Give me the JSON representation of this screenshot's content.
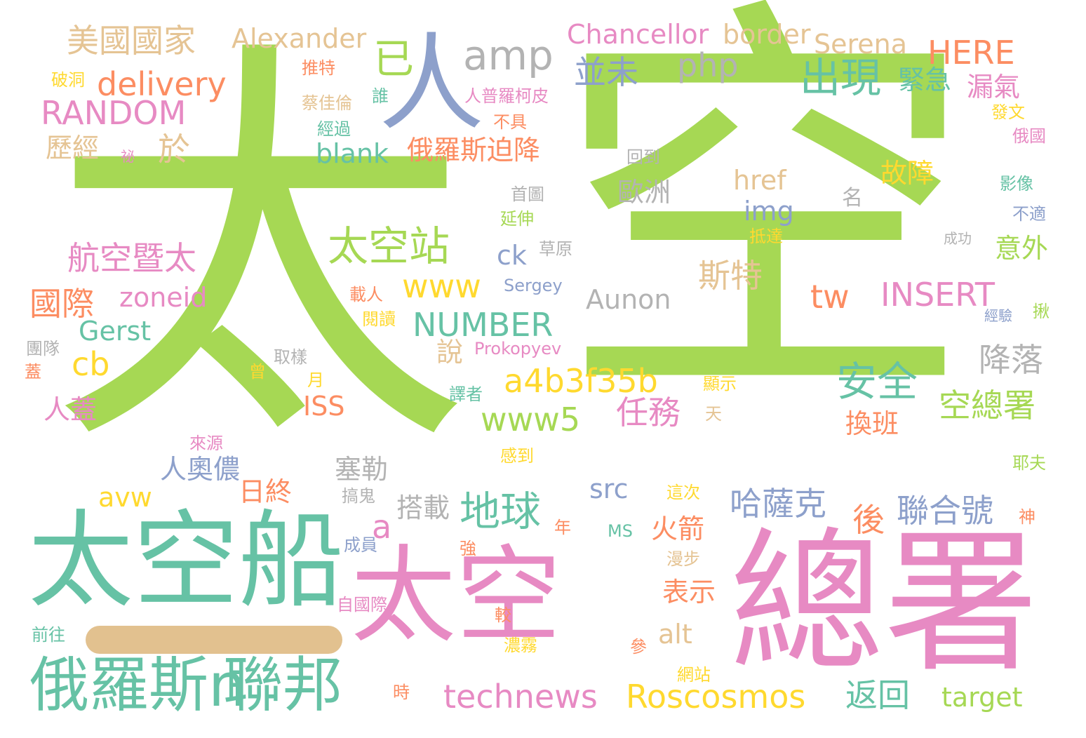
{
  "colors": {
    "green": "#a6d854",
    "teal": "#66c2a5",
    "pink": "#e78ac3",
    "blue": "#8da0cb",
    "orange": "#fc8d62",
    "yellow": "#ffd92f",
    "tan": "#e5c494",
    "gray": "#b3b3b3"
  },
  "words": {
    "tai": "太",
    "kong": "空",
    "taikongchuan": "太空船",
    "taikong_pink": "太空",
    "zongshu": "總署",
    "eluosi_n": "俄羅斯n",
    "lianbang": "聯邦",
    "ren": "人",
    "yi": "已",
    "amp": "amp",
    "php": "php",
    "chuxian": "出現",
    "taikongzhan": "太空站",
    "anquan": "安全",
    "diqiu": "地球",
    "meiguoguojia": "美國國家",
    "alexander": "Alexander",
    "chancellor": "Chancellor",
    "border": "border",
    "serena": "Serena",
    "here": "HERE",
    "delivery": "delivery",
    "random": "RANDOM",
    "bingwei": "並未",
    "jinji": "緊急",
    "louqi": "漏氣",
    "yu": "於",
    "lijing": "歷經",
    "blank": "blank",
    "eluosi_pojiang": "俄羅斯迫降",
    "guzhang": "故障",
    "href": "href",
    "ming": "名",
    "img": "img",
    "hangkong": "航空暨太",
    "ck": "ck",
    "sterte": "斯特",
    "yiwai": "意外",
    "guoji": "國際",
    "zoneid": "zoneid",
    "www": "www",
    "aunon": "Aunon",
    "insert": "INSERT",
    "tw": "tw",
    "number": "NUMBER",
    "gerst": "Gerst",
    "cb": "cb",
    "shuo": "說",
    "jiangluo": "降落",
    "a4b3": "a4b3f35b",
    "renzheng": "人蓋",
    "kongzongshu": "空總署",
    "iss": "ISS",
    "www5": "www5",
    "renwu": "任務",
    "huanban": "換班",
    "renaoru": "人奧儂",
    "saile": "塞勒",
    "rizhong": "日終",
    "avw": "avw",
    "a": "a",
    "src": "src",
    "dazai": "搭載",
    "huojian": "火箭",
    "hasake": "哈薩克",
    "hou": "後",
    "lianhehao": "聯合號",
    "biaoshi": "表示",
    "alt": "alt",
    "technews": "technews",
    "roscosmos": "Roscosmos",
    "fanhui": "返回",
    "target": "target",
    "ms": "MS",
    "prokopyev": "Prokopyev",
    "sergey": "Sergey",
    "tuite": "推特",
    "podong": "破洞",
    "caijialun": "蔡佳倫",
    "shui": "誰",
    "renpuluo": "人普羅柯皮",
    "jingguo": "經過",
    "bu_ju": "不具",
    "mi": "祕",
    "huidao": "回到",
    "fawen": "發文",
    "eguo": "俄國",
    "ouzhou": "歐洲",
    "shoutu": "首圖",
    "yanshen": "延伸",
    "yingxiang": "影像",
    "bushi": "不適",
    "dida": "抵達",
    "caoyuan": "草原",
    "chenggong": "成功",
    "zairen": "載人",
    "yuedu": "閱讀",
    "jingyan": "經驗",
    "jiu": "揪",
    "tuandui": "團隊",
    "quyang": "取樣",
    "gai": "蓋",
    "ceng": "曾",
    "xianshi": "顯示",
    "yue": "月",
    "yizhe": "譯者",
    "tian": "天",
    "laiyuan": "來源",
    "gandao": "感到",
    "yefu": "耶夫",
    "gaogui": "搞鬼",
    "zheci": "這次",
    "shen": "神",
    "nian": "年",
    "qiang": "強",
    "chengyuan": "成員",
    "manbu": "漫步",
    "ziguoji": "自國際",
    "jiao": "較",
    "qianwang": "前往",
    "nongwu": "濃霧",
    "shen2": "參",
    "wangzhan": "網站",
    "shi": "時"
  }
}
